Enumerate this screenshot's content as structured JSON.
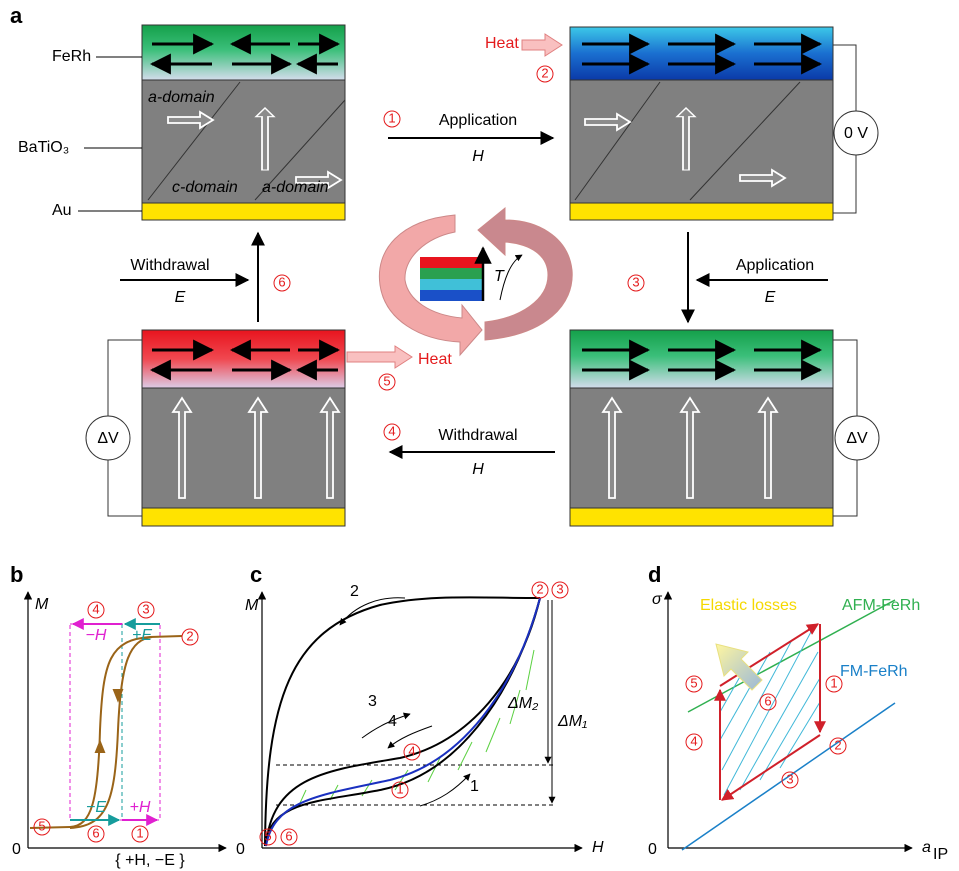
{
  "panel_a": {
    "label": "a",
    "layers": [
      "FeRh",
      "BaTiO₃",
      "Au"
    ],
    "domains": [
      "a-domain",
      "c-domain",
      "a-domain"
    ],
    "steps": [
      {
        "number": "1",
        "action": "Application",
        "field": "H"
      },
      {
        "number": "2",
        "action": "Heat"
      },
      {
        "number": "3",
        "action": "Application",
        "field": "E"
      },
      {
        "number": "4",
        "action": "Withdrawal",
        "field": "H"
      },
      {
        "number": "5",
        "action": "Heat"
      },
      {
        "number": "6",
        "action": "Withdrawal",
        "field": "E"
      }
    ],
    "voltages": [
      "0 V",
      "ΔV",
      "ΔV"
    ],
    "temperature": "T"
  },
  "panel_b": {
    "label": "b",
    "y_axis": "M",
    "x_axis": "{ +H, −E }",
    "origin": "0",
    "field_labels": [
      "−H",
      "+E",
      "−E",
      "+H"
    ],
    "steps": [
      "4",
      "3",
      "2",
      "5",
      "6",
      "1"
    ]
  },
  "panel_c": {
    "label": "c",
    "y_axis": "M",
    "x_axis": "H",
    "origin": "0",
    "curve_labels": [
      "2",
      "3",
      "4",
      "1"
    ],
    "delta_labels": [
      "ΔM₂",
      "ΔM₁"
    ],
    "steps": [
      "2",
      "3",
      "4",
      "1",
      "5",
      "6"
    ]
  },
  "panel_d": {
    "label": "d",
    "y_axis": "σ",
    "x_axis": {
      "symbol": "a",
      "subscript": "IP"
    },
    "origin": "0",
    "lines": [
      "AFM-FeRh",
      "FM-FeRh"
    ],
    "annotation": "Elastic losses",
    "steps": [
      "6",
      "1",
      "5",
      "2",
      "4",
      "3"
    ]
  }
}
